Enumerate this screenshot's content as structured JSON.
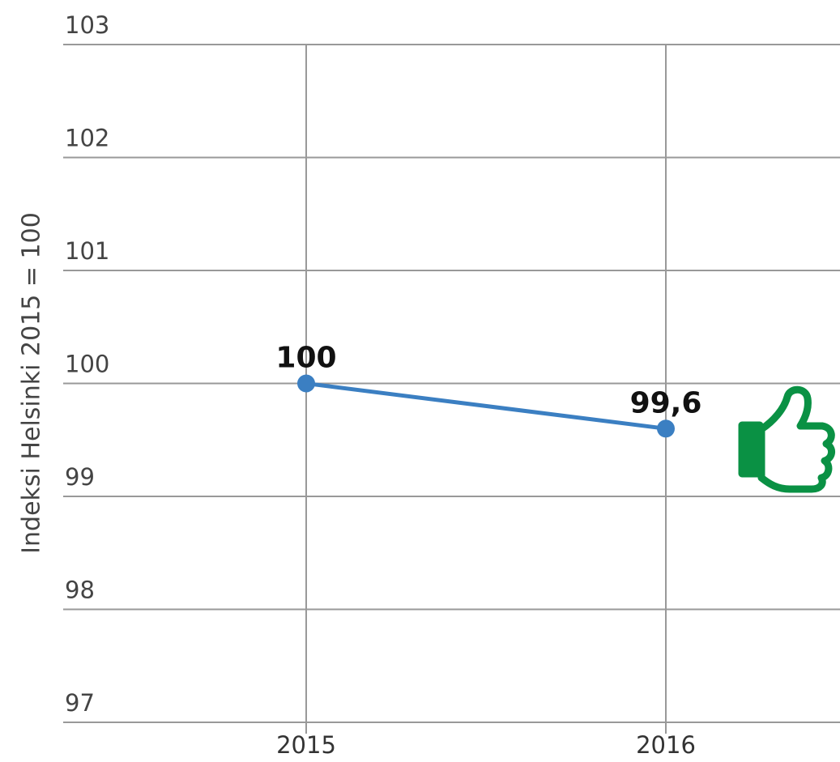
{
  "chart_data": {
    "type": "line",
    "y_label": "Indeksi Helsinki 2015 = 100",
    "categories": [
      "2015",
      "2016"
    ],
    "series": [
      {
        "name": null,
        "color": "#3b7fc2",
        "values": [
          100,
          99.6
        ],
        "value_labels": [
          "100",
          "99,6"
        ]
      }
    ],
    "ylim": [
      97,
      103
    ],
    "yticks": [
      97,
      98,
      99,
      100,
      101,
      102,
      103
    ],
    "grid": true
  }
}
